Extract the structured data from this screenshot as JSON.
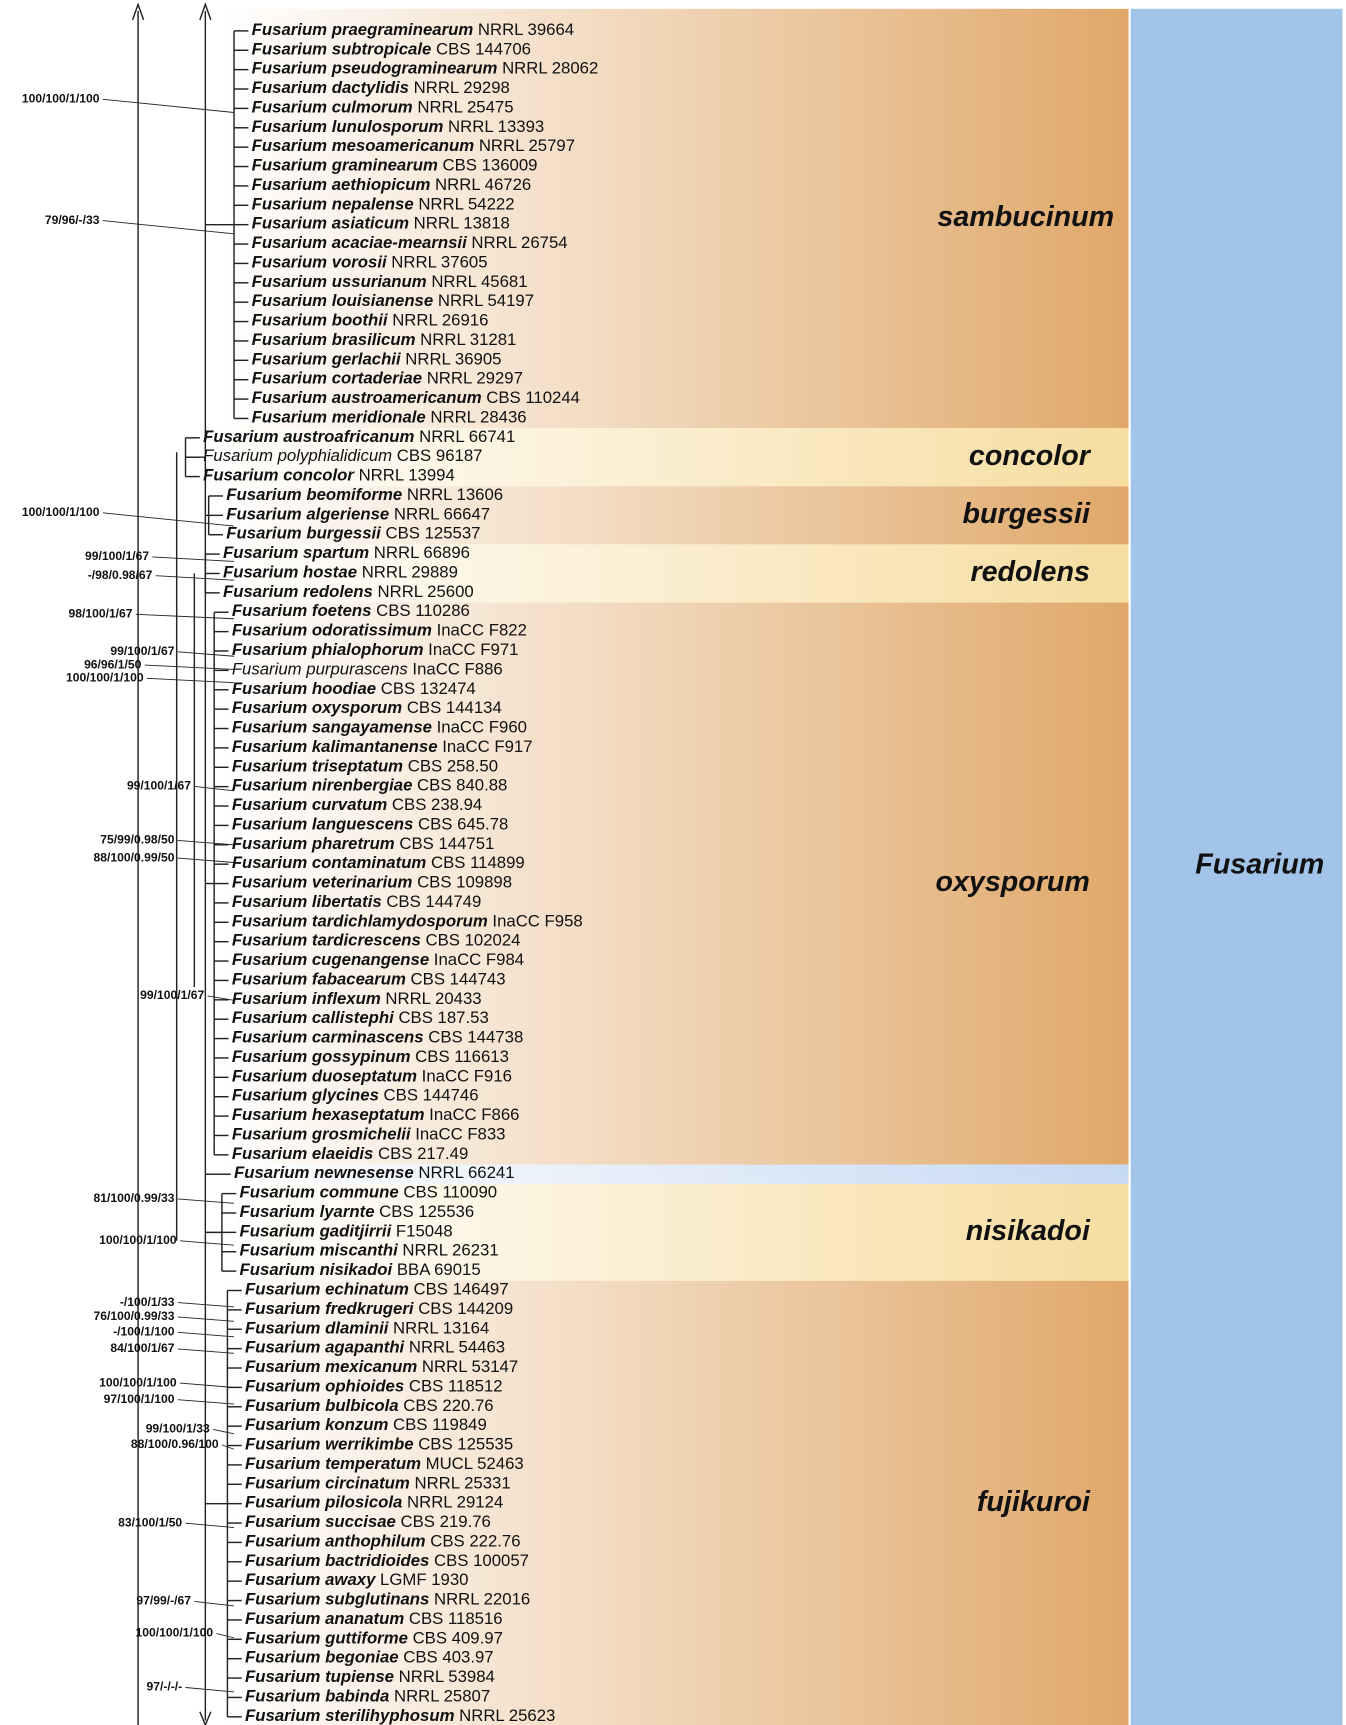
{
  "genus": "Fusarium",
  "genus_color": "#a3c4e9",
  "clades": [
    {
      "name": "sambucinum",
      "color": "#e0a86a",
      "taxa": [
        {
          "name": "Fusarium praegraminearum",
          "strain": "NRRL 39664"
        },
        {
          "name": "Fusarium subtropicale",
          "strain": "CBS 144706"
        },
        {
          "name": "Fusarium pseudograminearum",
          "strain": "NRRL 28062"
        },
        {
          "name": "Fusarium dactylidis",
          "strain": "NRRL 29298"
        },
        {
          "name": "Fusarium culmorum",
          "strain": "NRRL 25475"
        },
        {
          "name": "Fusarium lunulosporum",
          "strain": "NRRL 13393"
        },
        {
          "name": "Fusarium mesoamericanum",
          "strain": "NRRL 25797"
        },
        {
          "name": "Fusarium graminearum",
          "strain": "CBS 136009"
        },
        {
          "name": "Fusarium aethiopicum",
          "strain": "NRRL 46726"
        },
        {
          "name": "Fusarium nepalense",
          "strain": "NRRL 54222"
        },
        {
          "name": "Fusarium asiaticum",
          "strain": "NRRL 13818"
        },
        {
          "name": "Fusarium acaciae-mearnsii",
          "strain": "NRRL 26754"
        },
        {
          "name": "Fusarium vorosii",
          "strain": "NRRL 37605"
        },
        {
          "name": "Fusarium ussurianum",
          "strain": "NRRL 45681"
        },
        {
          "name": "Fusarium louisianense",
          "strain": "NRRL 54197"
        },
        {
          "name": "Fusarium boothii",
          "strain": "NRRL 26916"
        },
        {
          "name": "Fusarium brasilicum",
          "strain": "NRRL 31281"
        },
        {
          "name": "Fusarium gerlachii",
          "strain": "NRRL 36905"
        },
        {
          "name": "Fusarium cortaderiae",
          "strain": "NRRL 29297"
        },
        {
          "name": "Fusarium austroamericanum",
          "strain": "CBS 110244"
        },
        {
          "name": "Fusarium meridionale",
          "strain": "NRRL 28436"
        }
      ]
    },
    {
      "name": "concolor",
      "color": "#f6dda0",
      "taxa": [
        {
          "name": "Fusarium austroafricanum",
          "strain": "NRRL 66741"
        },
        {
          "name": "Fusarium polyphialidicum",
          "strain": "CBS 96187",
          "bold": false
        },
        {
          "name": "Fusarium concolor",
          "strain": "NRRL 13994"
        }
      ]
    },
    {
      "name": "burgessii",
      "color": "#e0a86a",
      "taxa": [
        {
          "name": "Fusarium beomiforme",
          "strain": "NRRL 13606"
        },
        {
          "name": "Fusarium algeriense",
          "strain": "NRRL 66647"
        },
        {
          "name": "Fusarium burgessii",
          "strain": "CBS 125537"
        }
      ]
    },
    {
      "name": "redolens",
      "color": "#f6dda0",
      "taxa": [
        {
          "name": "Fusarium spartum",
          "strain": "NRRL 66896"
        },
        {
          "name": "Fusarium hostae",
          "strain": "NRRL 29889"
        },
        {
          "name": "Fusarium redolens",
          "strain": "NRRL 25600"
        }
      ]
    },
    {
      "name": "oxysporum",
      "color": "#e0a86a",
      "taxa": [
        {
          "name": "Fusarium foetens",
          "strain": "CBS 110286"
        },
        {
          "name": "Fusarium odoratissimum",
          "strain": "InaCC F822"
        },
        {
          "name": "Fusarium phialophorum",
          "strain": "InaCC F971"
        },
        {
          "name": "Fusarium purpurascens",
          "strain": "InaCC F886",
          "bold": false
        },
        {
          "name": "Fusarium hoodiae",
          "strain": "CBS 132474"
        },
        {
          "name": "Fusarium oxysporum",
          "strain": "CBS 144134"
        },
        {
          "name": "Fusarium sangayamense",
          "strain": "InaCC F960"
        },
        {
          "name": "Fusarium kalimantanense",
          "strain": "InaCC F917"
        },
        {
          "name": "Fusarium triseptatum",
          "strain": "CBS 258.50"
        },
        {
          "name": "Fusarium nirenbergiae",
          "strain": "CBS 840.88"
        },
        {
          "name": "Fusarium curvatum",
          "strain": "CBS 238.94"
        },
        {
          "name": "Fusarium languescens",
          "strain": "CBS 645.78"
        },
        {
          "name": "Fusarium pharetrum",
          "strain": "CBS 144751"
        },
        {
          "name": "Fusarium contaminatum",
          "strain": "CBS 114899"
        },
        {
          "name": "Fusarium veterinarium",
          "strain": "CBS 109898"
        },
        {
          "name": "Fusarium libertatis",
          "strain": "CBS 144749"
        },
        {
          "name": "Fusarium tardichlamydosporum",
          "strain": "InaCC F958"
        },
        {
          "name": "Fusarium tardicrescens",
          "strain": "CBS 102024"
        },
        {
          "name": "Fusarium cugenangense",
          "strain": "InaCC F984"
        },
        {
          "name": "Fusarium fabacearum",
          "strain": "CBS 144743"
        },
        {
          "name": "Fusarium inflexum",
          "strain": "NRRL 20433"
        },
        {
          "name": "Fusarium callistephi",
          "strain": "CBS 187.53"
        },
        {
          "name": "Fusarium carminascens",
          "strain": "CBS 144738"
        },
        {
          "name": "Fusarium gossypinum",
          "strain": "CBS 116613"
        },
        {
          "name": "Fusarium duoseptatum",
          "strain": "InaCC F916"
        },
        {
          "name": "Fusarium glycines",
          "strain": "CBS 144746"
        },
        {
          "name": "Fusarium hexaseptatum",
          "strain": "InaCC F866"
        },
        {
          "name": "Fusarium grosmichelii",
          "strain": "InaCC F833"
        },
        {
          "name": "Fusarium elaeidis",
          "strain": "CBS 217.49"
        }
      ]
    },
    {
      "color": "#c6d9f3",
      "taxa": [
        {
          "name": "Fusarium newnesense",
          "strain": "NRRL 66241"
        }
      ]
    },
    {
      "name": "nisikadoi",
      "color": "#f6dda0",
      "taxa": [
        {
          "name": "Fusarium commune",
          "strain": "CBS 110090"
        },
        {
          "name": "Fusarium lyarnte",
          "strain": "CBS 125536"
        },
        {
          "name": "Fusarium gaditjirrii",
          "strain": "F15048"
        },
        {
          "name": "Fusarium miscanthi",
          "strain": "NRRL 26231"
        },
        {
          "name": "Fusarium nisikadoi",
          "strain": "BBA 69015"
        }
      ]
    },
    {
      "name": "fujikuroi",
      "color": "#e0a86a",
      "taxa": [
        {
          "name": "Fusarium echinatum",
          "strain": "CBS 146497"
        },
        {
          "name": "Fusarium fredkrugeri",
          "strain": "CBS 144209"
        },
        {
          "name": "Fusarium dlaminii",
          "strain": "NRRL 13164"
        },
        {
          "name": "Fusarium agapanthi",
          "strain": "NRRL 54463"
        },
        {
          "name": "Fusarium mexicanum",
          "strain": "NRRL 53147"
        },
        {
          "name": "Fusarium ophioides",
          "strain": "CBS 118512"
        },
        {
          "name": "Fusarium bulbicola",
          "strain": "CBS 220.76"
        },
        {
          "name": "Fusarium konzum",
          "strain": "CBS 119849"
        },
        {
          "name": "Fusarium werrikimbe",
          "strain": "CBS 125535"
        },
        {
          "name": "Fusarium temperatum",
          "strain": "MUCL 52463"
        },
        {
          "name": "Fusarium circinatum",
          "strain": "NRRL 25331"
        },
        {
          "name": "Fusarium pilosicola",
          "strain": "NRRL 29124"
        },
        {
          "name": "Fusarium succisae",
          "strain": "CBS 219.76"
        },
        {
          "name": "Fusarium anthophilum",
          "strain": "CBS 222.76"
        },
        {
          "name": "Fusarium bactridioides",
          "strain": "CBS 100057"
        },
        {
          "name": "Fusarium awaxy",
          "strain": "LGMF 1930"
        },
        {
          "name": "Fusarium subglutinans",
          "strain": "NRRL 22016"
        },
        {
          "name": "Fusarium ananatum",
          "strain": "CBS 118516"
        },
        {
          "name": "Fusarium guttiforme",
          "strain": "CBS 409.97"
        },
        {
          "name": "Fusarium begoniae",
          "strain": "CBS 403.97"
        },
        {
          "name": "Fusarium tupiense",
          "strain": "NRRL 53984"
        },
        {
          "name": "Fusarium babinda",
          "strain": "NRRL 25807"
        },
        {
          "name": "Fusarium sterilihyphosum",
          "strain": "NRRL 25623"
        }
      ]
    }
  ],
  "support_values": [
    "100/100/1/100",
    "79/96/-/33",
    "100/100/1/100",
    "99/100/1/67",
    "-/98/0.98/67",
    "98/100/1/67",
    "99/100/1/67",
    "96/96/1/50",
    "100/100/1/100",
    "99/100/1/67",
    "75/99/0.98/50",
    "88/100/0.99/50",
    "99/100/1/67",
    "81/100/0.99/33",
    "100/100/1/100",
    "-/100/1/33",
    "76/100/0.99/33",
    "-/100/1/100",
    "84/100/1/67",
    "100/100/1/100",
    "97/100/1/100",
    "99/100/1/33",
    "88/100/0.96/100",
    "83/100/1/50",
    "97/99/-/67",
    "100/100/1/100",
    "97/-/-/-"
  ]
}
